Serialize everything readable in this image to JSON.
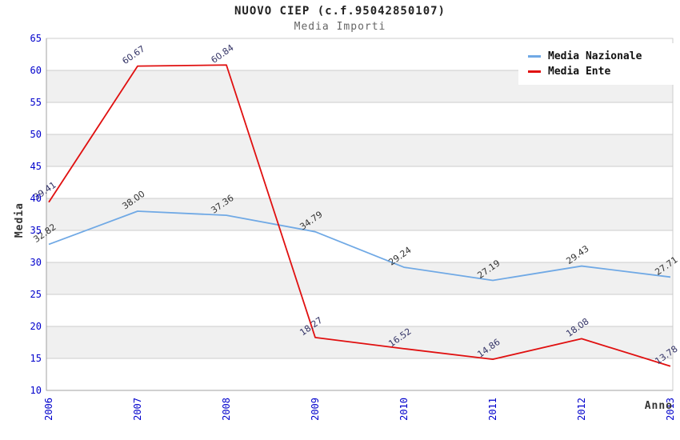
{
  "title": "NUOVO CIEP (c.f.95042850107)",
  "subtitle": "Media Importi",
  "chart_data": {
    "type": "line",
    "x": [
      2006,
      2007,
      2008,
      2009,
      2010,
      2011,
      2012,
      2013
    ],
    "series": [
      {
        "name": "Media Nazionale",
        "color": "#70A9E5",
        "label_color": "#333333",
        "values": [
          32.82,
          38.0,
          37.36,
          34.79,
          29.24,
          27.19,
          29.43,
          27.71
        ]
      },
      {
        "name": "Media Ente",
        "color": "#E01010",
        "label_color": "#333366",
        "values": [
          39.41,
          60.67,
          60.84,
          18.27,
          16.52,
          14.86,
          18.08,
          13.78
        ]
      }
    ],
    "xlabel": "Anno",
    "ylabel": "Media",
    "ylim": [
      10,
      65
    ],
    "ytick_step": 5,
    "grid": true,
    "band_color": "#f0f0f0",
    "gridline_color": "#cccccc",
    "axis_line_color": "#a0a0a0",
    "tick_label_color": "#0000cc",
    "legend_position": "top-right",
    "point_label_decimals": 2
  }
}
